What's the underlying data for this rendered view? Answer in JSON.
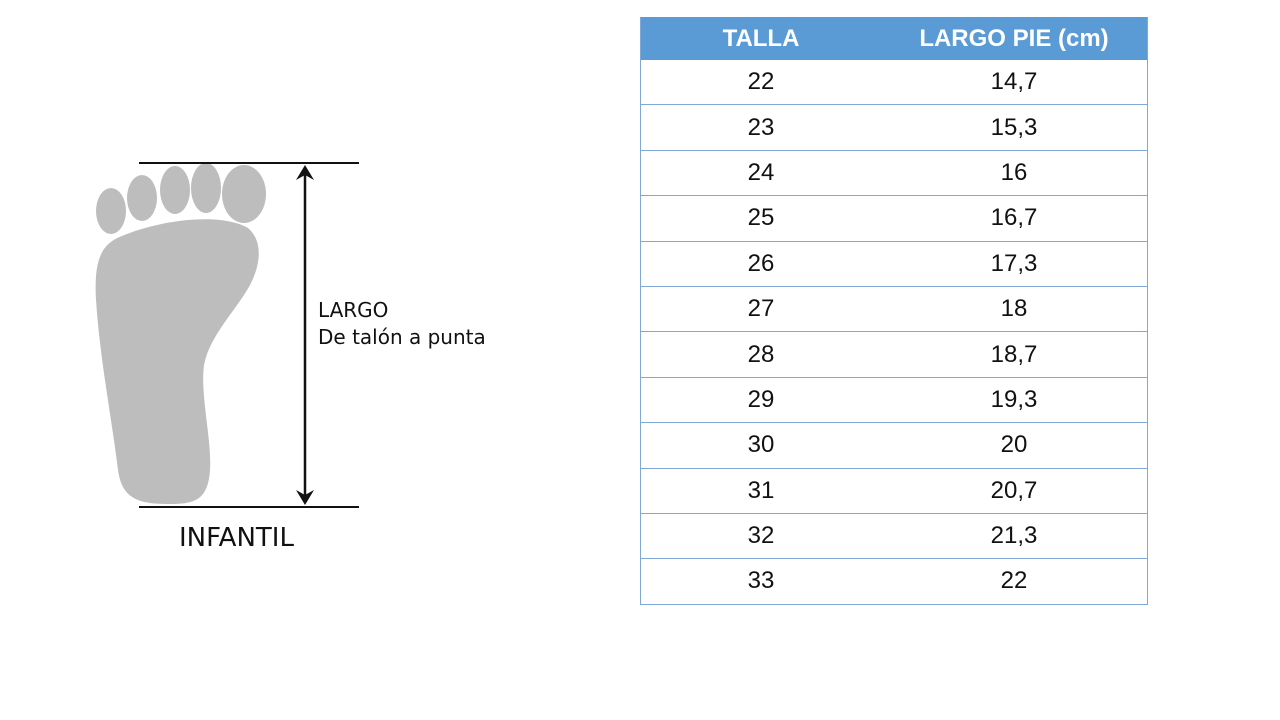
{
  "diagram": {
    "measure_label": "LARGO",
    "measure_sublabel": "De talón a punta",
    "category": "INFANTIL",
    "foot_color": "#bcbdbc"
  },
  "table": {
    "header_color": "#5b9bd5",
    "headers": [
      "TALLA",
      "LARGO PIE (cm)"
    ],
    "rows": [
      [
        "22",
        "14,7"
      ],
      [
        "23",
        "15,3"
      ],
      [
        "24",
        "16"
      ],
      [
        "25",
        "16,7"
      ],
      [
        "26",
        "17,3"
      ],
      [
        "27",
        "18"
      ],
      [
        "28",
        "18,7"
      ],
      [
        "29",
        "19,3"
      ],
      [
        "30",
        "20"
      ],
      [
        "31",
        "20,7"
      ],
      [
        "32",
        "21,3"
      ],
      [
        "33",
        "22"
      ]
    ]
  }
}
